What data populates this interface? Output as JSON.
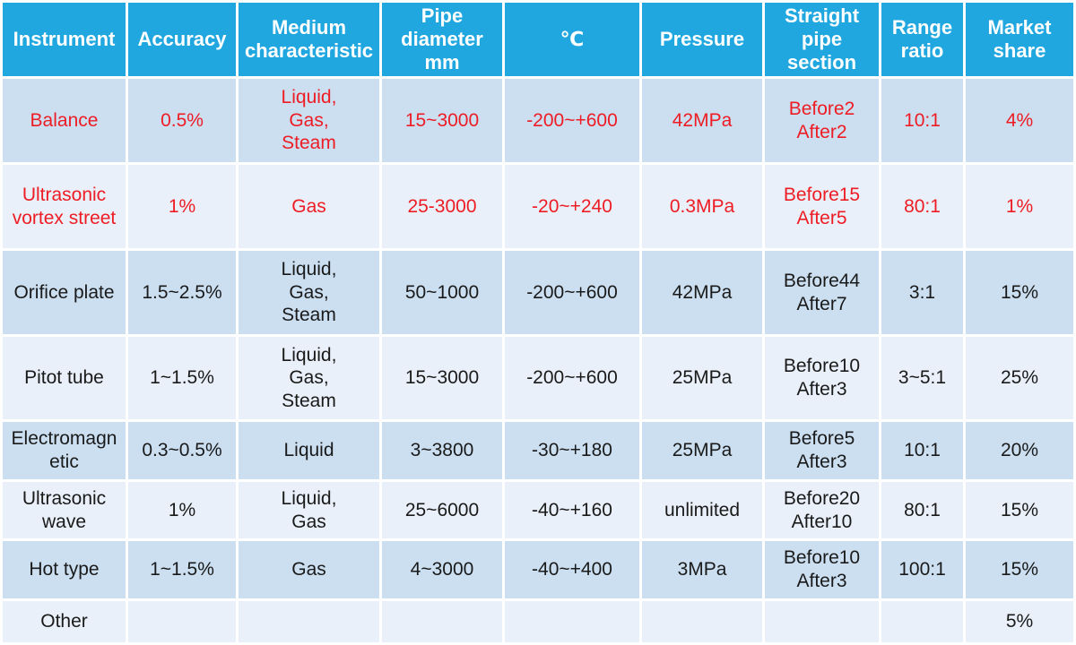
{
  "chart_data": {
    "type": "table",
    "columns": [
      "Instrument",
      "Accuracy",
      "Medium characteristic",
      "Pipe diameter mm",
      "℃",
      "Pressure",
      "Straight pipe section",
      "Range ratio",
      "Market share"
    ],
    "rows": [
      [
        "Balance",
        "0.5%",
        "Liquid,\nGas,\nSteam",
        "15~3000",
        "-200~+600",
        "42MPa",
        "Before2\nAfter2",
        "10:1",
        "4%"
      ],
      [
        "Ultrasonic vortex street",
        "1%",
        "Gas",
        "25-3000",
        "-20~+240",
        "0.3MPa",
        "Before15\nAfter5",
        "80:1",
        "1%"
      ],
      [
        "Orifice plate",
        "1.5~2.5%",
        "Liquid,\nGas,\nSteam",
        "50~1000",
        "-200~+600",
        "42MPa",
        "Before44\nAfter7",
        "3:1",
        "15%"
      ],
      [
        "Pitot tube",
        "1~1.5%",
        "Liquid,\nGas,\nSteam",
        "15~3000",
        "-200~+600",
        "25MPa",
        "Before10\nAfter3",
        "3~5:1",
        "25%"
      ],
      [
        "Electromagnetic",
        "0.3~0.5%",
        "Liquid",
        "3~3800",
        "-30~+180",
        "25MPa",
        "Before5\nAfter3",
        "10:1",
        "20%"
      ],
      [
        "Ultrasonic wave",
        "1%",
        "Liquid,\nGas",
        "25~6000",
        "-40~+160",
        "unlimited",
        "Before20\nAfter10",
        "80:1",
        "15%"
      ],
      [
        "Hot type",
        "1~1.5%",
        "Gas",
        "4~3000",
        "-40~+400",
        "3MPa",
        "Before10\nAfter3",
        "100:1",
        "15%"
      ],
      [
        "Other",
        "",
        "",
        "",
        "",
        "",
        "",
        "",
        "5%"
      ]
    ],
    "red_highlighted_rows": [
      0,
      1
    ],
    "legend_position": "none",
    "grid": "white cell gutters"
  },
  "colors": {
    "header_bg": "#21A7E0",
    "header_text": "#FFFFFF",
    "row_dark": "#CBDFF1",
    "row_light": "#E9F0F9",
    "red_text": "#EE1C24",
    "body_text": "#1A1A1A",
    "grid": "#FFFFFF"
  }
}
